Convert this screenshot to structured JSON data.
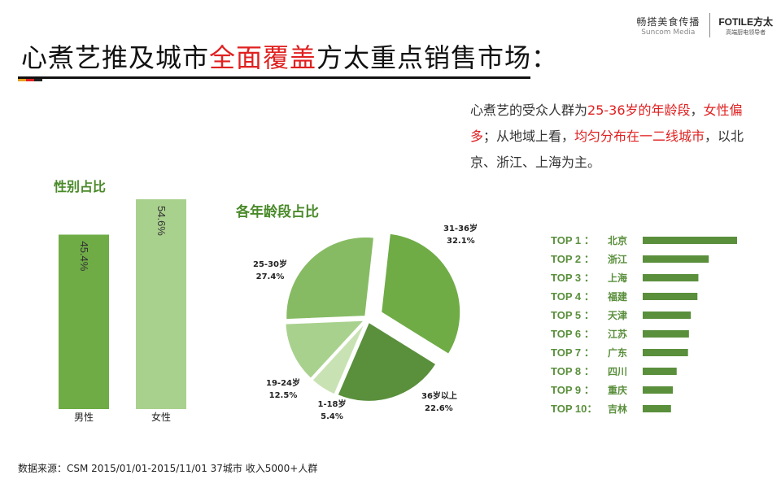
{
  "logos": {
    "suncom_cn": "畅搭美食传播",
    "suncom_en": "Suncom Media",
    "fotile_main": "FOTILE方太",
    "fotile_sub": "高端厨电领导者"
  },
  "title": {
    "part1": "心煮艺推及城市",
    "highlight": "全面覆盖",
    "part2": "方太重点销售市场："
  },
  "description": {
    "s1": "心煮艺的受众人群为",
    "s2": "25-36岁的年龄段",
    "s3": "，",
    "s4": "女性偏多",
    "s5": "；从地域上看，",
    "s6": "均匀分布在一二线城市",
    "s7": "，以北京、浙江、上海为主。"
  },
  "colors": {
    "dark_green": "#5a8f3c",
    "mid_green": "#6fac46",
    "light_green": "#a9d18e",
    "title_green": "#4a8a2a",
    "red": "#e02020"
  },
  "footer": "数据来源：CSM 2015/01/01-2015/11/01 37城市 收入5000+人群",
  "chart_data": [
    {
      "type": "bar",
      "title": "性别占比",
      "categories": [
        "男性",
        "女性"
      ],
      "values": [
        45.4,
        54.6
      ],
      "value_labels": [
        "45.4%",
        "54.6%"
      ],
      "colors": [
        "#6fac46",
        "#a9d18e"
      ]
    },
    {
      "type": "pie",
      "title": "各年龄段占比",
      "categories": [
        "31-36岁",
        "36岁以上",
        "1-18岁",
        "19-24岁",
        "25-30岁"
      ],
      "values": [
        32.1,
        22.6,
        5.4,
        12.5,
        27.4
      ],
      "value_labels": [
        "32.1%",
        "22.6%",
        "5.4%",
        "12.5%",
        "27.4%"
      ],
      "colors": [
        "#6fac46",
        "#5a8f3c",
        "#c9e2b3",
        "#a9d18e",
        "#86bb63"
      ],
      "exploded": "31-36岁"
    },
    {
      "type": "bar",
      "orientation": "horizontal",
      "categories": [
        "北京",
        "浙江",
        "上海",
        "福建",
        "天津",
        "江苏",
        "广东",
        "四川",
        "重庆",
        "吉林"
      ],
      "rank_labels": [
        "TOP 1 ：",
        "TOP 2 ：",
        "TOP 3 ：",
        "TOP 4 ：",
        "TOP 5 ：",
        "TOP 6 ：",
        "TOP 7 ：",
        "TOP 8 ：",
        "TOP 9 ：",
        "TOP 10："
      ],
      "values": [
        100,
        70,
        59,
        58,
        51,
        49,
        48,
        36,
        32,
        30
      ],
      "color": "#5a8f3c"
    }
  ]
}
